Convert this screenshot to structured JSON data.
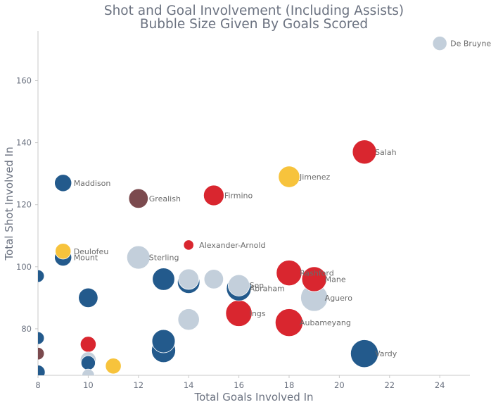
{
  "chart_data": {
    "type": "scatter",
    "title": "Shot and Goal Involvement (Including Assists)",
    "subtitle": "Bubble Size Given By Goals Scored",
    "xlabel": "Total Goals Involved In",
    "ylabel": "Total Shot Involved In",
    "xlim": [
      8,
      25.2
    ],
    "ylim": [
      65,
      176
    ],
    "xticks": [
      8,
      10,
      12,
      14,
      16,
      18,
      20,
      22,
      24
    ],
    "yticks": [
      80,
      100,
      120,
      140,
      160
    ],
    "grid": false,
    "colors": {
      "light_blue": "#c3cfdb",
      "dark_blue": "#235a8c",
      "red": "#d9262f",
      "yellow": "#f7c33c",
      "maroon": "#7b4a4e",
      "text": "#6b7280",
      "axis": "#c9c9c9"
    },
    "points": [
      {
        "label": "De Bruyne",
        "x": 24,
        "y": 172,
        "goals": 3,
        "color": "light_blue"
      },
      {
        "label": "Salah",
        "x": 21,
        "y": 137,
        "goals": 12,
        "color": "red"
      },
      {
        "label": "Jimenez",
        "x": 18,
        "y": 129,
        "goals": 9,
        "color": "yellow"
      },
      {
        "label": "Maddison",
        "x": 9,
        "y": 127,
        "goals": 5,
        "color": "dark_blue"
      },
      {
        "label": "Grealish",
        "x": 12,
        "y": 122,
        "goals": 7,
        "color": "maroon"
      },
      {
        "label": "Firmino",
        "x": 15,
        "y": 123,
        "goals": 8,
        "color": "red"
      },
      {
        "label": "Alexander-Arnold",
        "x": 14,
        "y": 107,
        "goals": 1,
        "color": "red"
      },
      {
        "label": "Deulofeu",
        "x": 9,
        "y": 105,
        "goals": 4,
        "color": "yellow"
      },
      {
        "label": "Mount",
        "x": 9,
        "y": 103,
        "goals": 5,
        "color": "dark_blue"
      },
      {
        "label": "Sterling",
        "x": 12,
        "y": 103,
        "goals": 11,
        "color": "light_blue"
      },
      {
        "label": "Rashford",
        "x": 18,
        "y": 98,
        "goals": 14,
        "color": "red"
      },
      {
        "label": "Mane",
        "x": 19,
        "y": 96,
        "goals": 13,
        "color": "red"
      },
      {
        "label": "Son",
        "x": 16,
        "y": 94,
        "goals": 9,
        "color": "light_blue"
      },
      {
        "label": "Abraham",
        "x": 16,
        "y": 93,
        "goals": 13,
        "color": "dark_blue"
      },
      {
        "label": "Aguero",
        "x": 19,
        "y": 90,
        "goals": 16,
        "color": "light_blue"
      },
      {
        "label": "Ings",
        "x": 16,
        "y": 85,
        "goals": 15,
        "color": "red"
      },
      {
        "label": "Aubameyang",
        "x": 18,
        "y": 82,
        "goals": 17,
        "color": "red"
      },
      {
        "label": "Vardy",
        "x": 21,
        "y": 72,
        "goals": 17,
        "color": "dark_blue"
      },
      {
        "label": "",
        "x": 8,
        "y": 97,
        "goals": 2,
        "color": "dark_blue"
      },
      {
        "label": "",
        "x": 10,
        "y": 90,
        "goals": 7,
        "color": "dark_blue"
      },
      {
        "label": "",
        "x": 13,
        "y": 96,
        "goals": 10,
        "color": "dark_blue"
      },
      {
        "label": "",
        "x": 14,
        "y": 96,
        "goals": 8,
        "color": "light_blue"
      },
      {
        "label": "",
        "x": 14,
        "y": 95,
        "goals": 10,
        "color": "dark_blue"
      },
      {
        "label": "",
        "x": 15,
        "y": 96,
        "goals": 7,
        "color": "light_blue"
      },
      {
        "label": "",
        "x": 14,
        "y": 83,
        "goals": 9,
        "color": "light_blue"
      },
      {
        "label": "",
        "x": 13,
        "y": 76,
        "goals": 11,
        "color": "dark_blue"
      },
      {
        "label": "",
        "x": 13,
        "y": 73,
        "goals": 12,
        "color": "dark_blue"
      },
      {
        "label": "",
        "x": 8,
        "y": 77,
        "goals": 2,
        "color": "dark_blue"
      },
      {
        "label": "",
        "x": 8,
        "y": 72,
        "goals": 2,
        "color": "maroon"
      },
      {
        "label": "",
        "x": 8,
        "y": 66,
        "goals": 3,
        "color": "dark_blue"
      },
      {
        "label": "",
        "x": 10,
        "y": 75,
        "goals": 4,
        "color": "red"
      },
      {
        "label": "",
        "x": 10,
        "y": 70,
        "goals": 4,
        "color": "light_blue"
      },
      {
        "label": "",
        "x": 10,
        "y": 69,
        "goals": 3,
        "color": "dark_blue"
      },
      {
        "label": "",
        "x": 11,
        "y": 68,
        "goals": 4,
        "color": "yellow"
      },
      {
        "label": "",
        "x": 10,
        "y": 65,
        "goals": 2,
        "color": "light_blue"
      }
    ]
  }
}
